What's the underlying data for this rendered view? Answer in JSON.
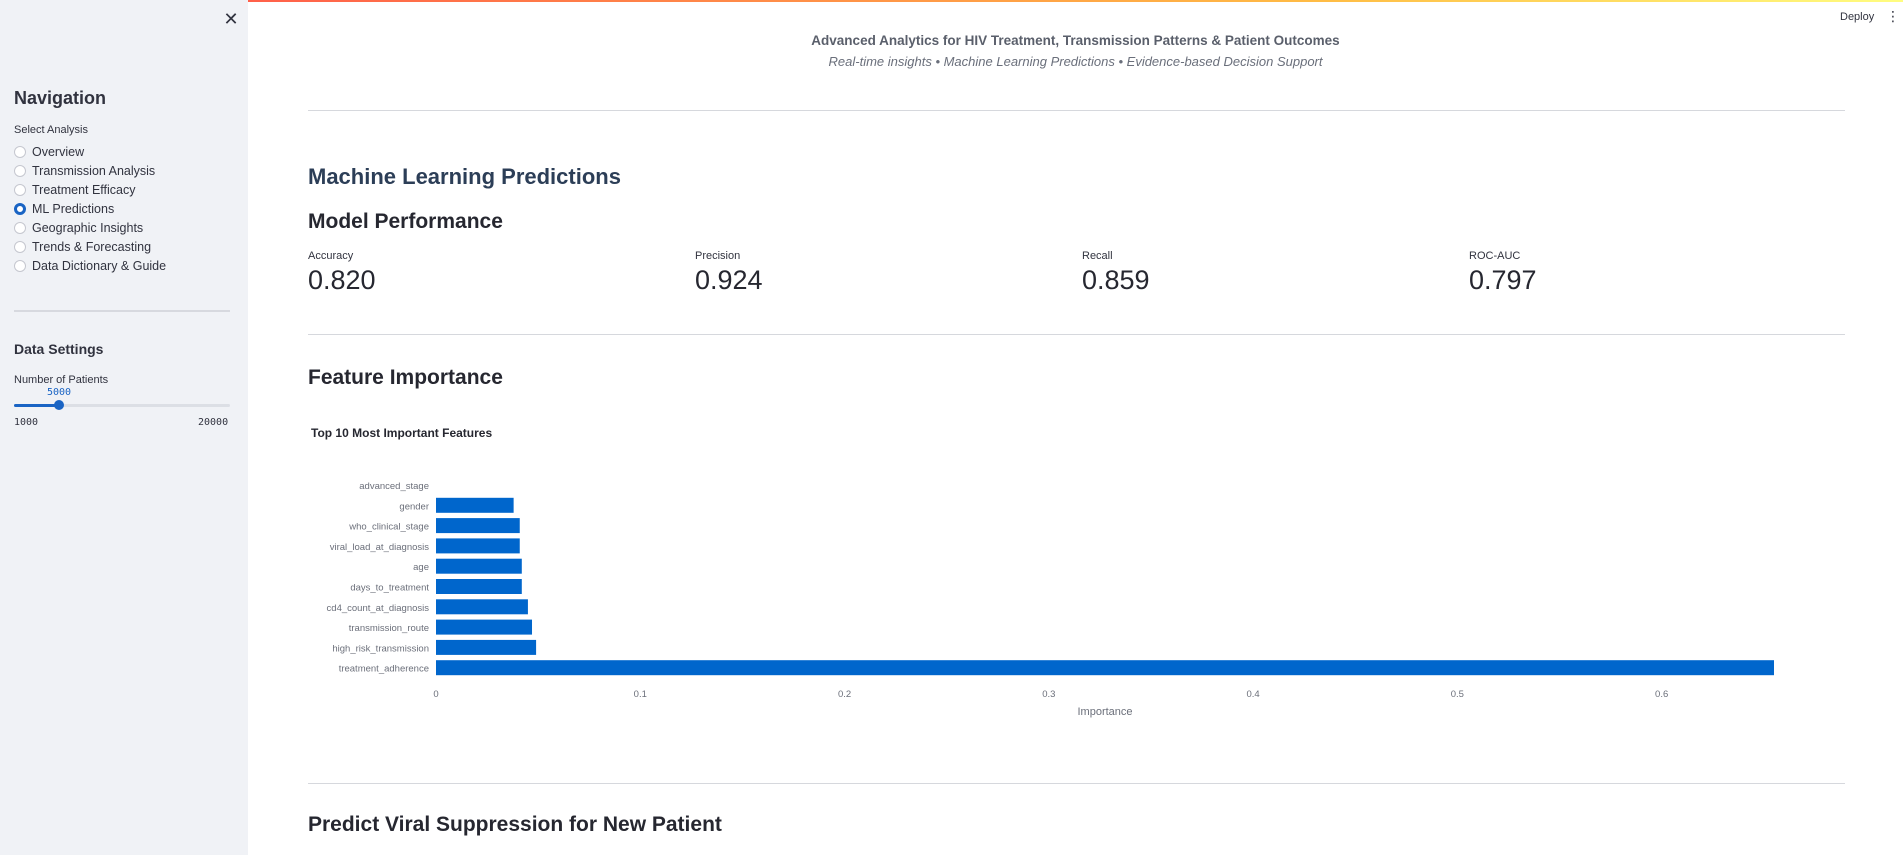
{
  "sidebar": {
    "close_icon": "close-icon",
    "nav_title": "Navigation",
    "select_label": "Select Analysis",
    "items": [
      {
        "label": "Overview",
        "selected": false
      },
      {
        "label": "Transmission Analysis",
        "selected": false
      },
      {
        "label": "Treatment Efficacy",
        "selected": false
      },
      {
        "label": "ML Predictions",
        "selected": true
      },
      {
        "label": "Geographic Insights",
        "selected": false
      },
      {
        "label": "Trends & Forecasting",
        "selected": false
      },
      {
        "label": "Data Dictionary & Guide",
        "selected": false
      }
    ],
    "data_settings_title": "Data Settings",
    "patients_label": "Number of Patients",
    "slider": {
      "value": "5000",
      "min": "1000",
      "max": "20000"
    }
  },
  "topbar": {
    "deploy_label": "Deploy",
    "menu_icon": "kebab-menu-icon"
  },
  "header": {
    "title": "Advanced Analytics for HIV Treatment, Transmission Patterns & Patient Outcomes",
    "subtitle": "Real-time insights • Machine Learning Predictions • Evidence-based Decision Support"
  },
  "main": {
    "section_title": "Machine Learning Predictions",
    "model_performance_title": "Model Performance",
    "metrics": [
      {
        "label": "Accuracy",
        "value": "0.820"
      },
      {
        "label": "Precision",
        "value": "0.924"
      },
      {
        "label": "Recall",
        "value": "0.859"
      },
      {
        "label": "ROC-AUC",
        "value": "0.797"
      }
    ],
    "feature_importance_title": "Feature Importance",
    "predict_title": "Predict Viral Suppression for New Patient"
  },
  "chart_data": {
    "type": "bar",
    "orientation": "horizontal",
    "title": "Top 10 Most Important Features",
    "xlabel": "Importance",
    "ylabel": "",
    "categories": [
      "advanced_stage",
      "gender",
      "who_clinical_stage",
      "viral_load_at_diagnosis",
      "age",
      "days_to_treatment",
      "cd4_count_at_diagnosis",
      "transmission_route",
      "high_risk_transmission",
      "treatment_adherence"
    ],
    "values": [
      0.0,
      0.038,
      0.041,
      0.041,
      0.042,
      0.042,
      0.045,
      0.047,
      0.049,
      0.655
    ],
    "xticks": [
      "0",
      "0.1",
      "0.2",
      "0.3",
      "0.4",
      "0.5",
      "0.6"
    ],
    "xlim": [
      0,
      0.655
    ],
    "bar_color": "#0066cc",
    "grid": false
  }
}
